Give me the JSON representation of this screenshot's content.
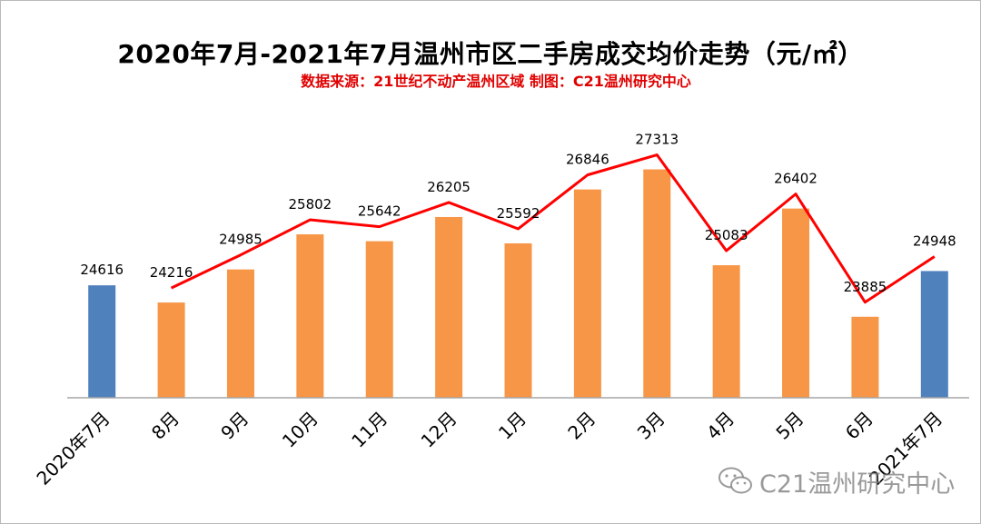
{
  "title": "2020年7月-2021年7月温州市区二手房成交均价走势（元/㎡）",
  "subtitle": "数据来源：21世纪不动产温州区域  制图：C21温州研究中心",
  "watermark": "C21温州研究中心",
  "colors": {
    "bar_highlight": "#4f81bd",
    "bar_default": "#f79646",
    "line": "#ff0000",
    "axis": "#a6a6a6"
  },
  "chart_data": {
    "type": "bar",
    "title": "2020年7月-2021年7月温州市区二手房成交均价走势（元/㎡）",
    "subtitle": "数据来源：21世纪不动产温州区域  制图：C21温州研究中心",
    "categories": [
      "2020年7月",
      "8月",
      "9月",
      "10月",
      "11月",
      "12月",
      "1月",
      "2月",
      "3月",
      "4月",
      "5月",
      "6月",
      "2021年7月"
    ],
    "values": [
      24616,
      24216,
      24985,
      25802,
      25642,
      26205,
      25592,
      26846,
      27313,
      25083,
      26402,
      23885,
      24948
    ],
    "bar_colors": [
      "#4f81bd",
      "#f79646",
      "#f79646",
      "#f79646",
      "#f79646",
      "#f79646",
      "#f79646",
      "#f79646",
      "#f79646",
      "#f79646",
      "#f79646",
      "#f79646",
      "#4f81bd"
    ],
    "overlay_line": {
      "type": "line",
      "x_start_index": 1,
      "values": [
        24216,
        24985,
        25802,
        25642,
        26205,
        25592,
        26846,
        27313,
        25083,
        26402,
        23885,
        24948
      ]
    },
    "ylim": [
      22000,
      28000
    ],
    "grid": false,
    "legend": "none",
    "xlabel": "",
    "ylabel": ""
  }
}
